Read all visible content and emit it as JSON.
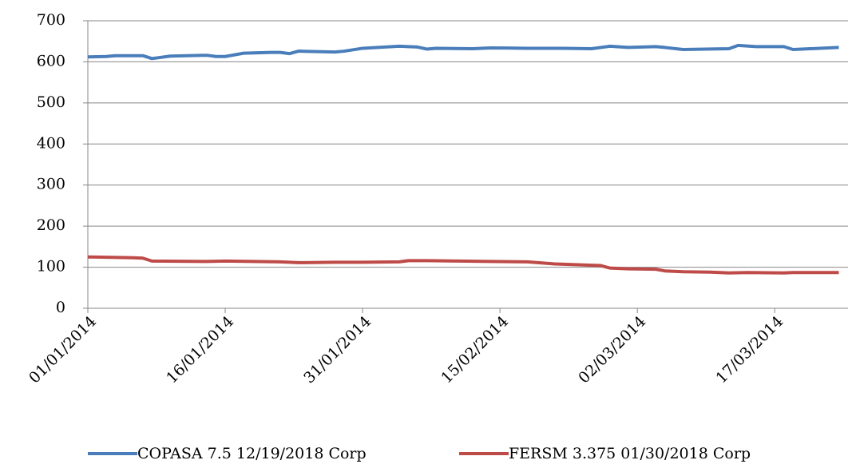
{
  "chart_data": {
    "type": "line",
    "xlim": [
      "01/01/2014",
      "25/03/2014"
    ],
    "xticks": [
      "01/01/2014",
      "16/01/2014",
      "31/01/2014",
      "15/02/2014",
      "02/03/2014",
      "17/03/2014"
    ],
    "ylim": [
      0,
      700
    ],
    "yticks": [
      0,
      100,
      200,
      300,
      400,
      500,
      600,
      700
    ],
    "grid": true,
    "legend": "bottom",
    "series": [
      {
        "name": "COPASA 7.5 12/19/2018 Corp",
        "color": "#4a7ebb",
        "x": [
          "01/01/2014",
          "03/01/2014",
          "04/01/2014",
          "07/01/2014",
          "08/01/2014",
          "10/01/2014",
          "14/01/2014",
          "15/01/2014",
          "16/01/2014",
          "18/01/2014",
          "21/01/2014",
          "22/01/2014",
          "23/01/2014",
          "24/01/2014",
          "28/01/2014",
          "29/01/2014",
          "31/01/2014",
          "04/02/2014",
          "06/02/2014",
          "07/02/2014",
          "08/02/2014",
          "12/02/2014",
          "14/02/2014",
          "18/02/2014",
          "22/02/2014",
          "25/02/2014",
          "27/02/2014",
          "01/03/2014",
          "04/03/2014",
          "05/03/2014",
          "07/03/2014",
          "12/03/2014",
          "13/03/2014",
          "15/03/2014",
          "18/03/2014",
          "19/03/2014",
          "24/03/2014"
        ],
        "values": [
          612,
          613,
          615,
          615,
          608,
          614,
          616,
          613,
          613,
          621,
          623,
          623,
          620,
          626,
          624,
          626,
          633,
          638,
          636,
          631,
          633,
          632,
          634,
          633,
          633,
          632,
          638,
          635,
          637,
          635,
          630,
          632,
          640,
          637,
          637,
          630,
          635
        ]
      },
      {
        "name": "FERSM 3.375 01/30/2018 Corp",
        "color": "#be4b48",
        "x": [
          "01/01/2014",
          "06/01/2014",
          "07/01/2014",
          "08/01/2014",
          "14/01/2014",
          "16/01/2014",
          "22/01/2014",
          "24/01/2014",
          "28/01/2014",
          "31/01/2014",
          "04/02/2014",
          "05/02/2014",
          "07/02/2014",
          "14/02/2014",
          "18/02/2014",
          "21/02/2014",
          "26/02/2014",
          "27/02/2014",
          "01/03/2014",
          "04/03/2014",
          "05/03/2014",
          "07/03/2014",
          "10/03/2014",
          "12/03/2014",
          "14/03/2014",
          "18/03/2014",
          "19/03/2014",
          "24/03/2014"
        ],
        "values": [
          125,
          123,
          122,
          115,
          114,
          115,
          113,
          111,
          112,
          112,
          113,
          116,
          116,
          114,
          113,
          108,
          104,
          98,
          96,
          95,
          91,
          89,
          88,
          86,
          87,
          86,
          87,
          87
        ]
      }
    ]
  }
}
